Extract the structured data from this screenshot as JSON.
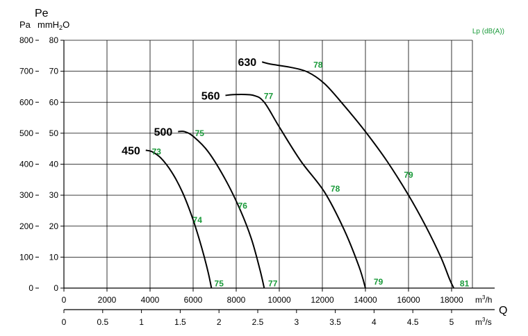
{
  "chart_data": {
    "type": "line",
    "y_title": "Pe",
    "y_units": [
      "Pa",
      "mmH2O"
    ],
    "y_unit_pa": "Pa",
    "y_unit_mmh2o_base": "mmH",
    "y_unit_mmh2o_sub": "2",
    "y_unit_mmh2o_end": "O",
    "lp_label": "Lp (dB(A))",
    "x_title": "Q",
    "x_unit_m3h_base": "m",
    "x_unit_m3h_sup": "3",
    "x_unit_m3h_end": "/h",
    "x_unit_m3s_base": "m",
    "x_unit_m3s_sup": "3",
    "x_unit_m3s_end": "/s",
    "xlim_m3h": [
      0,
      20000
    ],
    "ylim_pa": [
      0,
      800
    ],
    "ylim_mmh2o": [
      0,
      80
    ],
    "pa_ticks": [
      "0",
      "100",
      "200",
      "300",
      "400",
      "500",
      "600",
      "700",
      "800"
    ],
    "mmh2o_ticks": [
      "0",
      "10",
      "20",
      "30",
      "40",
      "50",
      "60",
      "70",
      "80"
    ],
    "m3h_ticks": [
      "0",
      "2000",
      "4000",
      "6000",
      "8000",
      "10000",
      "12000",
      "14000",
      "16000",
      "18000"
    ],
    "m3s_ticks": [
      "0",
      "0.5",
      "1",
      "1.5",
      "2",
      "2.5",
      "3",
      "3.5",
      "4",
      "4.5",
      "5"
    ],
    "grid": true,
    "series": [
      {
        "name": "450",
        "points": [
          [
            3800,
            445
          ],
          [
            4100,
            440
          ],
          [
            4500,
            420
          ],
          [
            5000,
            375
          ],
          [
            5500,
            310
          ],
          [
            6000,
            220
          ],
          [
            6400,
            130
          ],
          [
            6700,
            50
          ],
          [
            6850,
            0
          ]
        ],
        "noise": [
          {
            "x": 4300,
            "y": 440,
            "label": "73"
          },
          {
            "x": 6200,
            "y": 220,
            "label": "74"
          },
          {
            "x": 7200,
            "y": 15,
            "label": "75"
          }
        ]
      },
      {
        "name": "500",
        "points": [
          [
            5300,
            505
          ],
          [
            5600,
            505
          ],
          [
            6000,
            490
          ],
          [
            6700,
            440
          ],
          [
            7500,
            350
          ],
          [
            8200,
            250
          ],
          [
            8700,
            160
          ],
          [
            9100,
            60
          ],
          [
            9300,
            0
          ]
        ],
        "noise": [
          {
            "x": 6300,
            "y": 500,
            "label": "75"
          },
          {
            "x": 8300,
            "y": 265,
            "label": "76"
          },
          {
            "x": 9700,
            "y": 15,
            "label": "77"
          }
        ]
      },
      {
        "name": "560",
        "points": [
          [
            7500,
            622
          ],
          [
            8000,
            625
          ],
          [
            8800,
            622
          ],
          [
            9300,
            600
          ],
          [
            10000,
            520
          ],
          [
            11000,
            410
          ],
          [
            12100,
            310
          ],
          [
            13000,
            190
          ],
          [
            13700,
            70
          ],
          [
            14000,
            0
          ]
        ],
        "noise": [
          {
            "x": 9500,
            "y": 620,
            "label": "77"
          },
          {
            "x": 12600,
            "y": 320,
            "label": "78"
          },
          {
            "x": 14600,
            "y": 20,
            "label": "79"
          }
        ]
      },
      {
        "name": "630",
        "points": [
          [
            9200,
            730
          ],
          [
            9600,
            723
          ],
          [
            10500,
            713
          ],
          [
            11300,
            698
          ],
          [
            12100,
            660
          ],
          [
            13000,
            590
          ],
          [
            14000,
            505
          ],
          [
            15000,
            410
          ],
          [
            16000,
            300
          ],
          [
            16800,
            200
          ],
          [
            17500,
            100
          ],
          [
            17900,
            30
          ],
          [
            18100,
            0
          ]
        ],
        "noise": [
          {
            "x": 11800,
            "y": 720,
            "label": "78"
          },
          {
            "x": 16000,
            "y": 365,
            "label": "79"
          },
          {
            "x": 18600,
            "y": 15,
            "label": "81"
          }
        ]
      }
    ]
  }
}
